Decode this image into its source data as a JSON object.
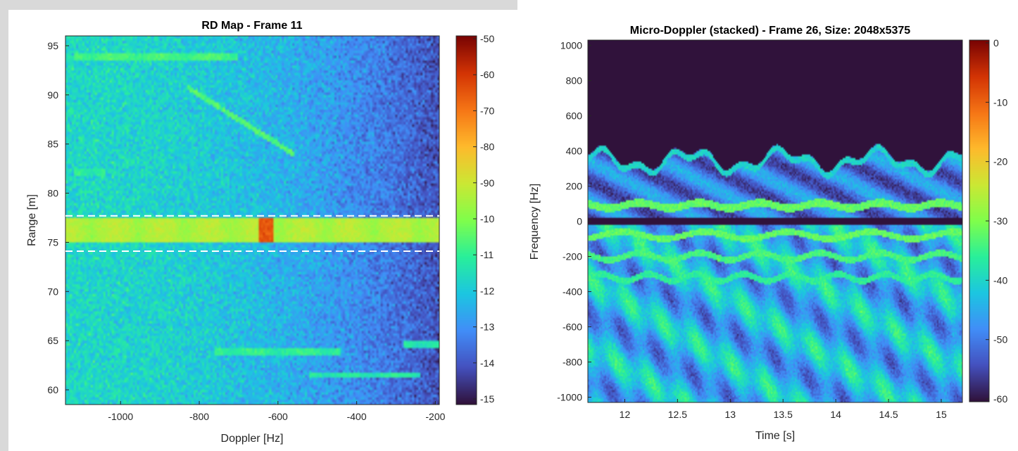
{
  "chart_data": [
    {
      "type": "heatmap",
      "title": "RD Map - Frame 11",
      "xlabel": "Doppler [Hz]",
      "ylabel": "Range [m]",
      "xlim": [
        -1140,
        -190
      ],
      "ylim": [
        58.5,
        96
      ],
      "xticks": [
        -1000,
        -800,
        -600,
        -400,
        -200
      ],
      "yticks": [
        60,
        65,
        70,
        75,
        80,
        85,
        90,
        95
      ],
      "xticklabels": [
        "-1000",
        "-800",
        "-600",
        "-400",
        "-200"
      ],
      "yticklabels": [
        "60",
        "65",
        "70",
        "75",
        "80",
        "85",
        "90",
        "95"
      ],
      "colormap": "turbo",
      "clim": [
        -150,
        -50
      ],
      "colorbar_ticks": [
        "-50",
        "-60",
        "-70",
        "-80",
        "-90",
        "-10",
        "-11",
        "-12",
        "-13",
        "-14",
        "-15"
      ],
      "gate_lines_range": [
        77.7,
        74.1
      ],
      "gate_line_style": "white dashed",
      "features": [
        {
          "range": 76.2,
          "doppler_from": -1140,
          "doppler_to": -190,
          "level": -92
        },
        {
          "range": 76.2,
          "doppler": -630,
          "level": -65
        },
        {
          "range": 93.8,
          "doppler_from": -1120,
          "doppler_to": -700,
          "level": -105
        },
        {
          "range": 82.1,
          "doppler_from": -1120,
          "doppler_to": -1040,
          "level": -108
        },
        {
          "range": 63.9,
          "doppler_from": -760,
          "doppler_to": -440,
          "level": -108
        },
        {
          "range": 64.6,
          "doppler_from": -280,
          "doppler_to": -190,
          "level": -110
        },
        {
          "range": 61.5,
          "doppler_from": -520,
          "doppler_to": -240,
          "level": -110
        }
      ]
    },
    {
      "type": "heatmap",
      "title": "Micro-Doppler (stacked) - Frame 26, Size: 2048x5375",
      "xlabel": "Time [s]",
      "ylabel": "Frequency [Hz]",
      "xlim": [
        11.65,
        15.2
      ],
      "ylim": [
        -1030,
        1030
      ],
      "xticks": [
        12,
        12.5,
        13,
        13.5,
        14,
        14.5,
        15
      ],
      "yticks": [
        1000,
        800,
        600,
        400,
        200,
        0,
        -200,
        -400,
        -600,
        -800,
        -1000
      ],
      "xticklabels": [
        "12",
        "12.5",
        "13",
        "13.5",
        "14",
        "14.5",
        "15"
      ],
      "yticklabels": [
        "1000",
        "800",
        "600",
        "400",
        "200",
        "0",
        "-200",
        "-400",
        "-600",
        "-800",
        "-1000"
      ],
      "colormap": "turbo",
      "clim": [
        -60,
        0
      ],
      "colorbar_ticks": [
        "0",
        "-10",
        "-20",
        "-30",
        "-40",
        "-50",
        "-60"
      ],
      "features": [
        {
          "frequency_from": 430,
          "frequency_to": 1030,
          "level": -60
        },
        {
          "frequency_from": 0,
          "frequency_to": 430,
          "level": -48
        },
        {
          "frequency": 0,
          "level": -60,
          "note_free": true
        },
        {
          "frequency_from": -1030,
          "frequency_to": -20,
          "level": -42
        },
        {
          "frequency": 90,
          "level": -30
        },
        {
          "frequency": -80,
          "level": -32
        },
        {
          "frequency": -200,
          "level": -34
        },
        {
          "frequency": -320,
          "level": -36
        }
      ]
    }
  ]
}
